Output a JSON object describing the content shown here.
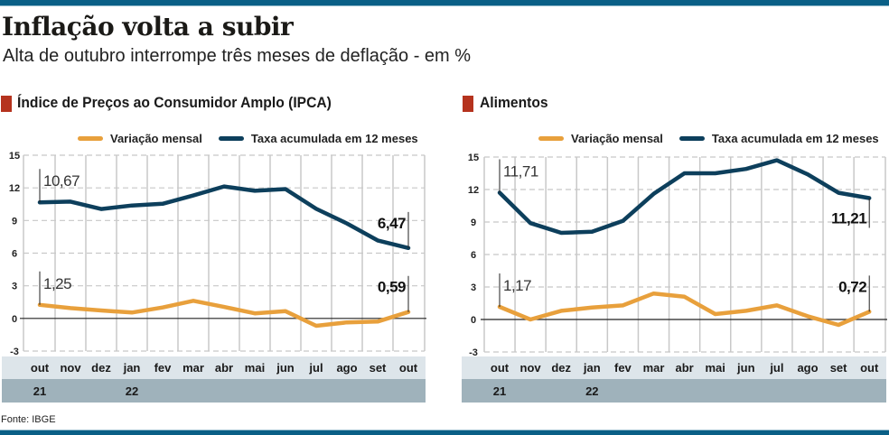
{
  "header": {
    "title": "Inflação volta a subir",
    "subtitle": "Alta de outubro interrompe três meses de deflação - em %"
  },
  "colors": {
    "brand_bar": "#0a5f86",
    "section_marker": "#b5331e",
    "monthly": "#e8a03c",
    "accumulated": "#0d3f5c",
    "axis_band_months": "#dde5ea",
    "axis_band_years": "#9fb2bb"
  },
  "source": "Fonte: IBGE",
  "chart_data": [
    {
      "type": "line",
      "title": "Índice de Preços ao Consumidor Amplo (IPCA)",
      "categories": [
        "out",
        "nov",
        "dez",
        "jan",
        "fev",
        "mar",
        "abr",
        "mai",
        "jun",
        "jul",
        "ago",
        "set",
        "out"
      ],
      "year_labels": [
        {
          "index": 0,
          "label": "21"
        },
        {
          "index": 3,
          "label": "22"
        }
      ],
      "ylim": [
        -3,
        15
      ],
      "yticks": [
        "15",
        "12",
        "9",
        "6",
        "3",
        "0",
        "-3"
      ],
      "grid": true,
      "legend": [
        "Variação mensal",
        "Taxa acumulada em 12 meses"
      ],
      "legend_position": "top-right",
      "series": [
        {
          "name": "Variação mensal",
          "values": [
            1.25,
            0.95,
            0.73,
            0.54,
            1.01,
            1.62,
            1.06,
            0.47,
            0.67,
            -0.68,
            -0.36,
            -0.29,
            0.59
          ]
        },
        {
          "name": "Taxa acumulada em 12 meses",
          "values": [
            10.67,
            10.74,
            10.06,
            10.38,
            10.54,
            11.3,
            12.13,
            11.73,
            11.89,
            10.07,
            8.73,
            7.17,
            6.47
          ]
        }
      ],
      "annotations": [
        {
          "series": 1,
          "index": 0,
          "label": "10,67",
          "bold": false
        },
        {
          "series": 1,
          "index": 12,
          "label": "6,47",
          "bold": true
        },
        {
          "series": 0,
          "index": 0,
          "label": "1,25",
          "bold": false
        },
        {
          "series": 0,
          "index": 12,
          "label": "0,59",
          "bold": true
        }
      ]
    },
    {
      "type": "line",
      "title": "Alimentos",
      "categories": [
        "out",
        "nov",
        "dez",
        "jan",
        "fev",
        "mar",
        "abr",
        "mai",
        "jun",
        "jul",
        "ago",
        "set",
        "out"
      ],
      "year_labels": [
        {
          "index": 0,
          "label": "21"
        },
        {
          "index": 3,
          "label": "22"
        }
      ],
      "ylim": [
        -3,
        15
      ],
      "yticks": [
        "15",
        "12",
        "9",
        "6",
        "3",
        "0",
        "-3"
      ],
      "grid": true,
      "legend": [
        "Variação mensal",
        "Taxa acumulada em 12 meses"
      ],
      "legend_position": "top-right",
      "series": [
        {
          "name": "Variação mensal",
          "values": [
            1.17,
            0.0,
            0.8,
            1.1,
            1.3,
            2.4,
            2.1,
            0.5,
            0.8,
            1.3,
            0.3,
            -0.5,
            0.72
          ]
        },
        {
          "name": "Taxa acumulada em 12 meses",
          "values": [
            11.71,
            8.9,
            8.0,
            8.1,
            9.1,
            11.6,
            13.5,
            13.5,
            13.9,
            14.7,
            13.4,
            11.7,
            11.21
          ]
        }
      ],
      "annotations": [
        {
          "series": 1,
          "index": 0,
          "label": "11,71",
          "bold": false
        },
        {
          "series": 1,
          "index": 12,
          "label": "11,21",
          "bold": true
        },
        {
          "series": 0,
          "index": 0,
          "label": "1,17",
          "bold": false
        },
        {
          "series": 0,
          "index": 12,
          "label": "0,72",
          "bold": true
        }
      ]
    }
  ]
}
